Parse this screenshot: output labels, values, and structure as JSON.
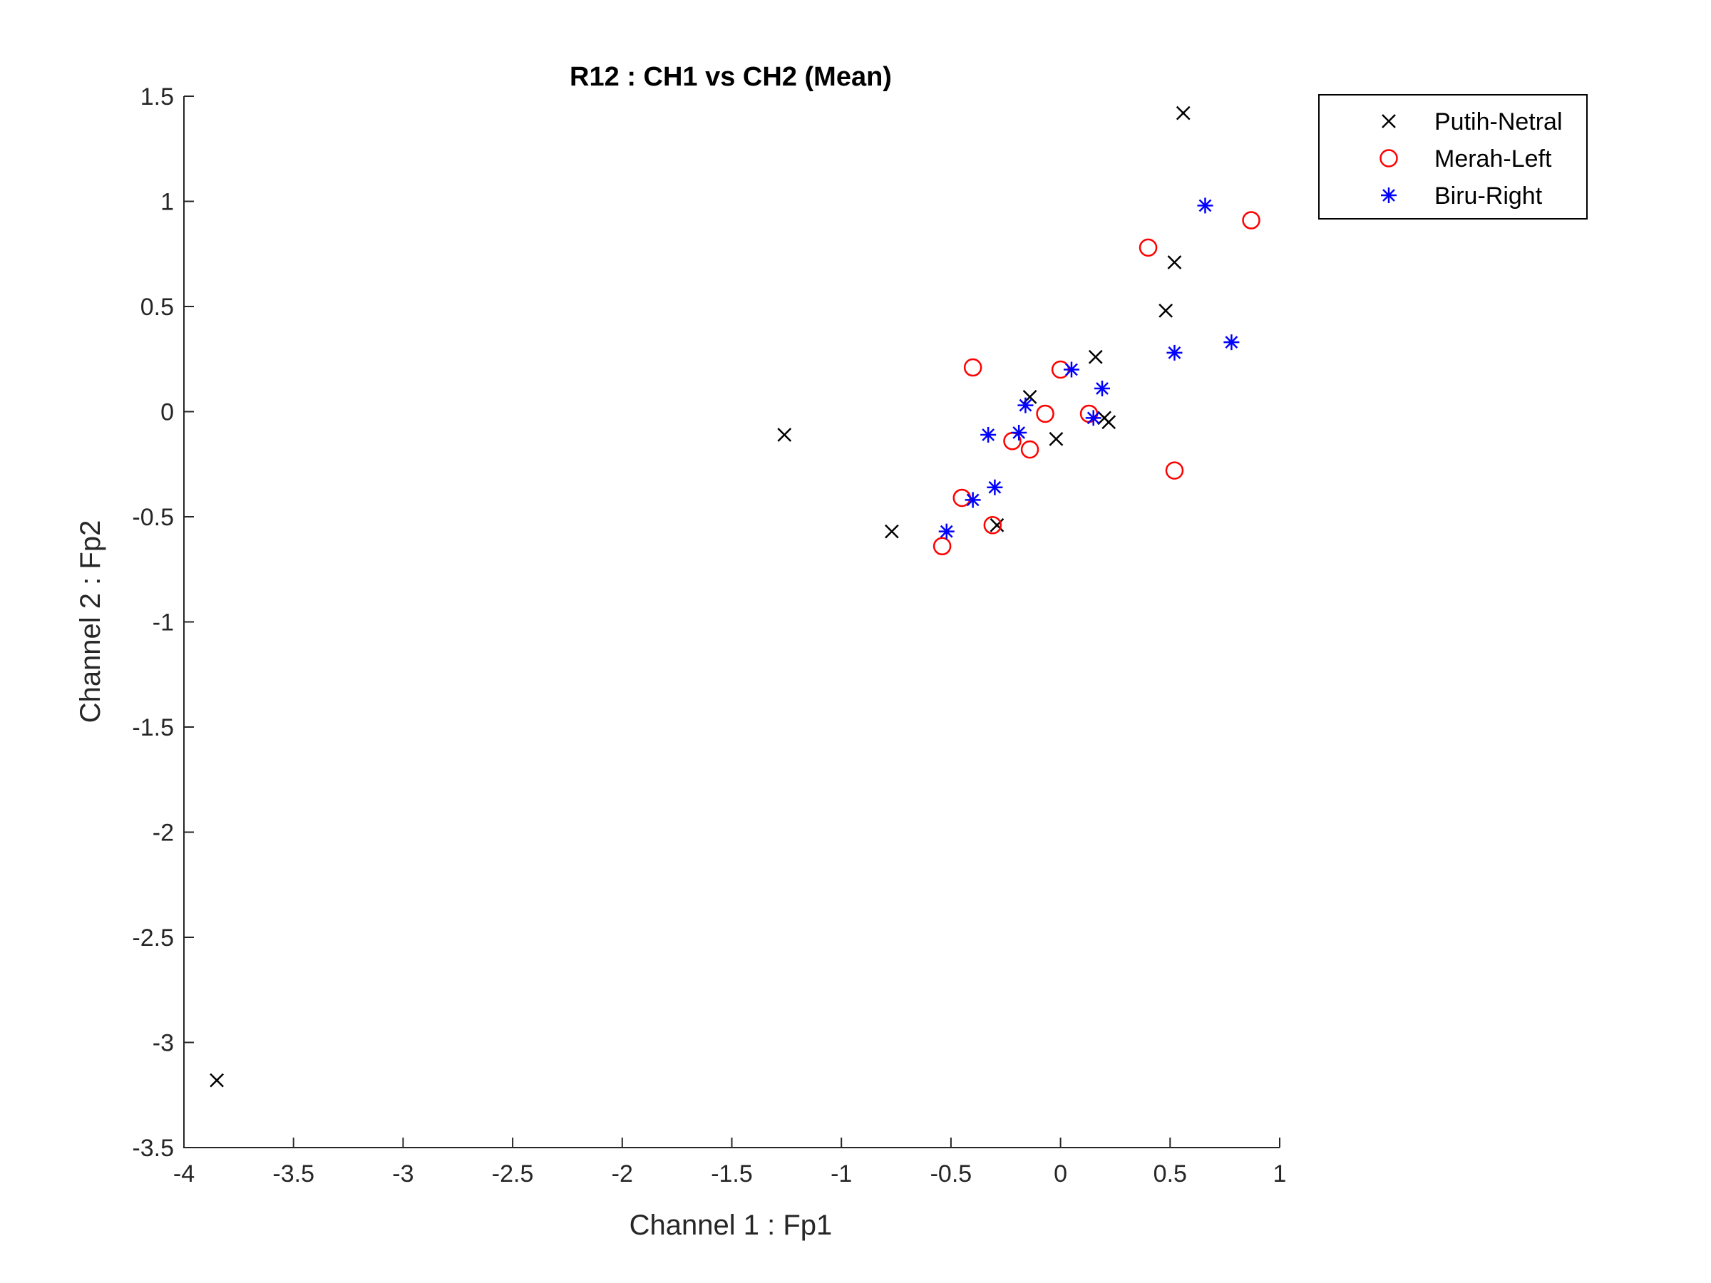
{
  "chart_data": {
    "type": "scatter",
    "title": "R12 : CH1 vs CH2 (Mean)",
    "xlabel": "Channel 1 : Fp1",
    "ylabel": "Channel 2 : Fp2",
    "xlim": [
      -4,
      1
    ],
    "ylim": [
      -3.5,
      1.5
    ],
    "xticks": [
      -4,
      -3.5,
      -3,
      -2.5,
      -2,
      -1.5,
      -1,
      -0.5,
      0,
      0.5,
      1
    ],
    "xtick_labels": [
      "-4",
      "-3.5",
      "-3",
      "-2.5",
      "-2",
      "-1.5",
      "-1",
      "-0.5",
      "0",
      "0.5",
      "1"
    ],
    "yticks": [
      -3.5,
      -3,
      -2.5,
      -2,
      -1.5,
      -1,
      -0.5,
      0,
      0.5,
      1,
      1.5
    ],
    "ytick_labels": [
      "-3.5",
      "-3",
      "-2.5",
      "-2",
      "-1.5",
      "-1",
      "-0.5",
      "0",
      "0.5",
      "1",
      "1.5"
    ],
    "grid": false,
    "legend_position": "top-right-outside",
    "series": [
      {
        "name": "Putih-Netral",
        "marker": "x",
        "color": "#000000",
        "points": [
          [
            0.56,
            1.42
          ],
          [
            0.52,
            0.71
          ],
          [
            0.48,
            0.48
          ],
          [
            0.16,
            0.26
          ],
          [
            -0.14,
            0.07
          ],
          [
            0.22,
            -0.05
          ],
          [
            0.2,
            -0.03
          ],
          [
            -0.02,
            -0.13
          ],
          [
            -1.26,
            -0.11
          ],
          [
            -0.77,
            -0.57
          ],
          [
            -0.29,
            -0.54
          ],
          [
            -3.85,
            -3.18
          ]
        ]
      },
      {
        "name": "Merah-Left",
        "marker": "o",
        "color": "#ff0000",
        "points": [
          [
            0.87,
            0.91
          ],
          [
            0.4,
            0.78
          ],
          [
            -0.4,
            0.21
          ],
          [
            0.0,
            0.2
          ],
          [
            -0.07,
            -0.01
          ],
          [
            0.13,
            -0.01
          ],
          [
            -0.22,
            -0.14
          ],
          [
            -0.14,
            -0.18
          ],
          [
            0.52,
            -0.28
          ],
          [
            -0.45,
            -0.41
          ],
          [
            -0.31,
            -0.54
          ],
          [
            -0.54,
            -0.64
          ]
        ]
      },
      {
        "name": "Biru-Right",
        "marker": "*",
        "color": "#0000ff",
        "points": [
          [
            0.66,
            0.98
          ],
          [
            0.78,
            0.33
          ],
          [
            0.52,
            0.28
          ],
          [
            0.05,
            0.2
          ],
          [
            0.19,
            0.11
          ],
          [
            -0.16,
            0.03
          ],
          [
            0.15,
            -0.03
          ],
          [
            -0.33,
            -0.11
          ],
          [
            -0.19,
            -0.1
          ],
          [
            -0.3,
            -0.36
          ],
          [
            -0.4,
            -0.42
          ],
          [
            -0.52,
            -0.57
          ]
        ]
      }
    ]
  }
}
